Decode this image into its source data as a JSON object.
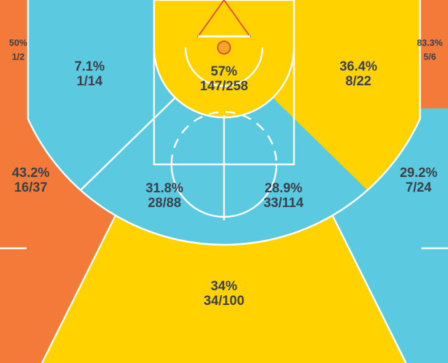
{
  "zones": [
    {
      "pct": "50%",
      "made_attempts": "1/2"
    },
    {
      "pct": "7.1%",
      "made_attempts": "1/14"
    },
    {
      "pct": "57%",
      "made_attempts": "147/258"
    },
    {
      "pct": "36.4%",
      "made_attempts": "8/22"
    },
    {
      "pct": "83.3%",
      "made_attempts": "5/6"
    },
    {
      "pct": "43.2%",
      "made_attempts": "16/37"
    },
    {
      "pct": "31.8%",
      "made_attempts": "28/88"
    },
    {
      "pct": "28.9%",
      "made_attempts": "33/114"
    },
    {
      "pct": "29.2%",
      "made_attempts": "7/24"
    },
    {
      "pct": "34%",
      "made_attempts": "34/100"
    }
  ]
}
